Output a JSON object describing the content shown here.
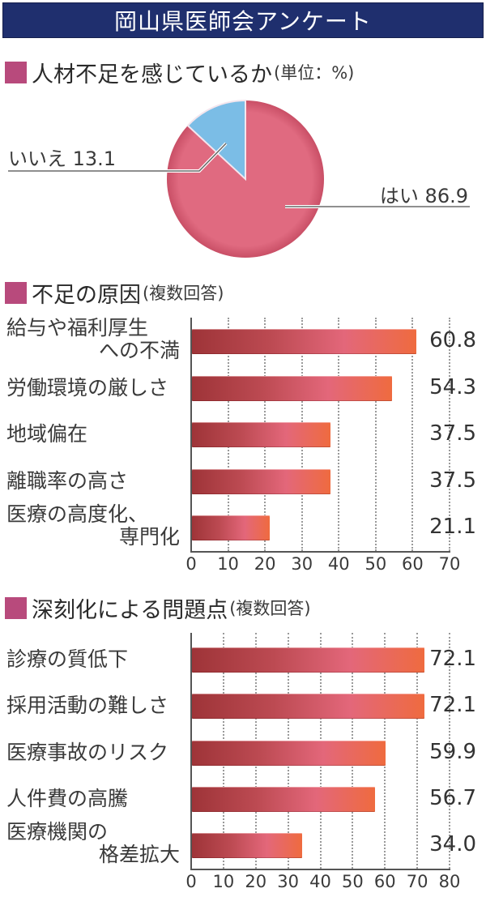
{
  "header": {
    "title": "岡山県医師会アンケート"
  },
  "colors": {
    "title_bg": "#1f2f6e",
    "marker": "#b84a7c",
    "pie_yes": "#e06a80",
    "pie_no": "#7bbde6",
    "bar_start": "#9e3438",
    "bar_mid": "#e3677a",
    "bar_end": "#ef6b3f"
  },
  "sections": {
    "pie": {
      "title": "人材不足を感じているか",
      "subtitle": "(単位：%)"
    },
    "causes": {
      "title": "不足の原因",
      "subtitle": "(複数回答)"
    },
    "problems": {
      "title": "深刻化による問題点",
      "subtitle": "(複数回答)"
    }
  },
  "pie_labels": {
    "no": "いいえ 13.1",
    "yes": "はい 86.9"
  },
  "chart_data": [
    {
      "type": "pie",
      "title": "人材不足を感じているか",
      "subtitle": "(単位：%)",
      "categories": [
        "はい",
        "いいえ"
      ],
      "values": [
        86.9,
        13.1
      ],
      "colors": [
        "#e06a80",
        "#7bbde6"
      ]
    },
    {
      "type": "bar",
      "orientation": "horizontal",
      "title": "不足の原因",
      "subtitle": "(複数回答)",
      "categories": [
        "給与や福利厚生への不満",
        "労働環境の厳しさ",
        "地域偏在",
        "離職率の高さ",
        "医療の高度化、専門化"
      ],
      "category_lines": [
        [
          "給与や福利厚生",
          "への不満"
        ],
        [
          "労働環境の厳しさ"
        ],
        [
          "地域偏在"
        ],
        [
          "離職率の高さ"
        ],
        [
          "医療の高度化、",
          "専門化"
        ]
      ],
      "values": [
        60.8,
        54.3,
        37.5,
        37.5,
        21.1
      ],
      "value_labels": [
        "60.8",
        "54.3",
        "37.5",
        "37.5",
        "21.1"
      ],
      "xlim": [
        0,
        70
      ],
      "xticks": [
        "0",
        "10",
        "20",
        "30",
        "40",
        "50",
        "60",
        "70"
      ],
      "grid": true,
      "xlabel": "",
      "ylabel": ""
    },
    {
      "type": "bar",
      "orientation": "horizontal",
      "title": "深刻化による問題点",
      "subtitle": "(複数回答)",
      "categories": [
        "診療の質低下",
        "採用活動の難しさ",
        "医療事故のリスク",
        "人件費の高騰",
        "医療機関の格差拡大"
      ],
      "category_lines": [
        [
          "診療の質低下"
        ],
        [
          "採用活動の難しさ"
        ],
        [
          "医療事故のリスク"
        ],
        [
          "人件費の高騰"
        ],
        [
          "医療機関の",
          "格差拡大"
        ]
      ],
      "values": [
        72.1,
        72.1,
        59.9,
        56.7,
        34.0
      ],
      "value_labels": [
        "72.1",
        "72.1",
        "59.9",
        "56.7",
        "34.0"
      ],
      "xlim": [
        0,
        80
      ],
      "xticks": [
        "0",
        "10",
        "20",
        "30",
        "40",
        "50",
        "60",
        "70",
        "80"
      ],
      "grid": true,
      "xlabel": "",
      "ylabel": ""
    }
  ]
}
